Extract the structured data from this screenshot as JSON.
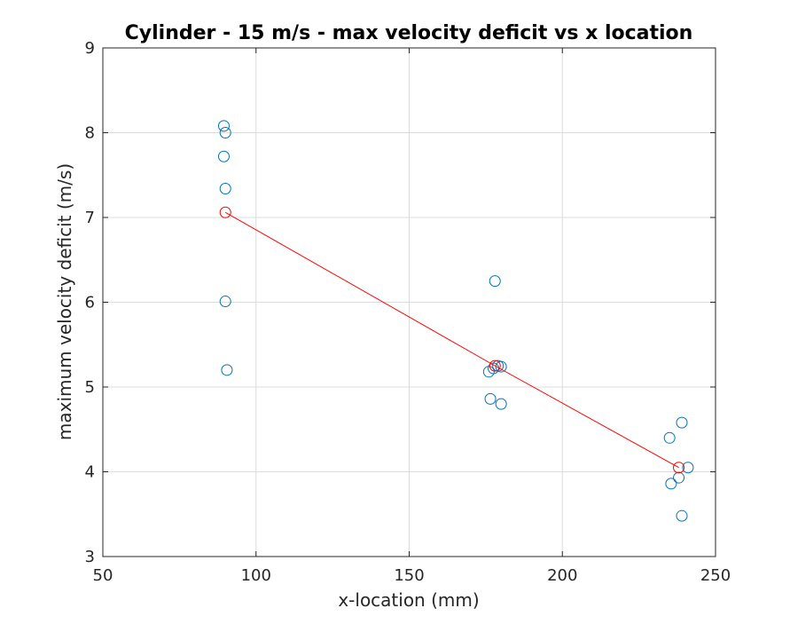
{
  "chart_data": {
    "type": "scatter",
    "title": "Cylinder - 15 m/s - max velocity deficit vs x location",
    "xlabel": "x-location (mm)",
    "ylabel": "maximum velocity deficit (m/s)",
    "xlim": [
      50,
      250
    ],
    "ylim": [
      3,
      9
    ],
    "xticks": [
      50,
      100,
      150,
      200,
      250
    ],
    "yticks": [
      3,
      4,
      5,
      6,
      7,
      8,
      9
    ],
    "xtick_labels": [
      "50",
      "100",
      "150",
      "200",
      "250"
    ],
    "ytick_labels": [
      "3",
      "4",
      "5",
      "6",
      "7",
      "8",
      "9"
    ],
    "grid": true,
    "legend": "none",
    "series": [
      {
        "color": "#0072BD",
        "marker": "circle-open",
        "points": [
          {
            "x": 89.5,
            "y": 8.08
          },
          {
            "x": 90.0,
            "y": 8.0
          },
          {
            "x": 89.5,
            "y": 7.72
          },
          {
            "x": 90.0,
            "y": 7.34
          },
          {
            "x": 90.0,
            "y": 6.01
          },
          {
            "x": 90.5,
            "y": 5.2
          },
          {
            "x": 178.0,
            "y": 6.25
          },
          {
            "x": 176.0,
            "y": 5.18
          },
          {
            "x": 177.5,
            "y": 5.22
          },
          {
            "x": 179.0,
            "y": 5.25
          },
          {
            "x": 180.0,
            "y": 5.24
          },
          {
            "x": 176.5,
            "y": 4.86
          },
          {
            "x": 180.0,
            "y": 4.8
          },
          {
            "x": 239.0,
            "y": 4.58
          },
          {
            "x": 235.0,
            "y": 4.4
          },
          {
            "x": 241.0,
            "y": 4.05
          },
          {
            "x": 238.0,
            "y": 3.93
          },
          {
            "x": 235.5,
            "y": 3.86
          },
          {
            "x": 239.0,
            "y": 3.48
          }
        ]
      },
      {
        "color": "#FF0000",
        "marker": "circle-open",
        "line": true,
        "points": [
          {
            "x": 90.0,
            "y": 7.06
          },
          {
            "x": 178.0,
            "y": 5.25
          },
          {
            "x": 238.0,
            "y": 4.05
          }
        ]
      }
    ]
  }
}
